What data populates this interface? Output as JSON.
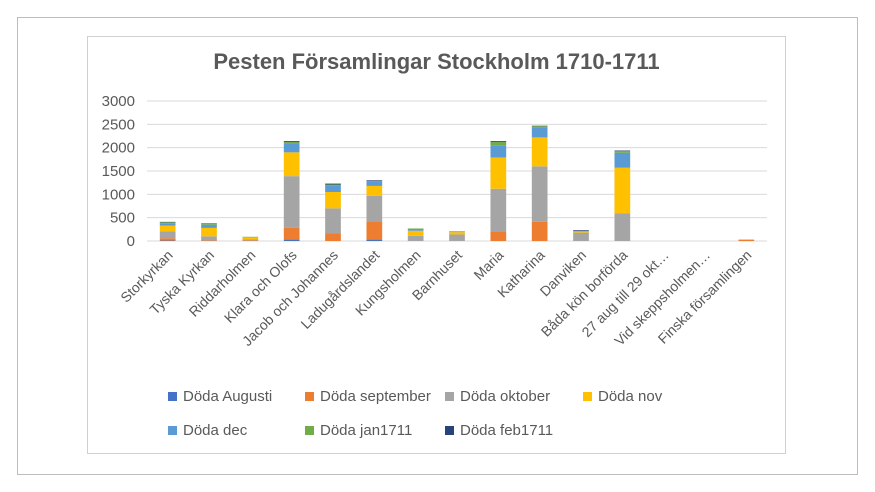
{
  "chart_data": {
    "type": "bar",
    "stacked": true,
    "title": "Pesten Församlingar Stockholm 1710-1711",
    "xlabel": "",
    "ylabel": "",
    "ylim": [
      0,
      3000
    ],
    "yticks": [
      0,
      500,
      1000,
      1500,
      2000,
      2500,
      3000
    ],
    "grid": true,
    "legend_position": "bottom",
    "categories": [
      "Storkyrkan",
      "Tyska Kyrkan",
      "Riddarholmen",
      "Klara och Olofs",
      "Jacob och Johannes",
      "Ladugårdslandet",
      "Kungsholmen",
      "Barnhuset",
      "Maria",
      "Katharina",
      "Danviken",
      "Båda kön borförda",
      "27 aug till 29 okt…",
      "Vid skeppsholmen…",
      "Finska församlingen"
    ],
    "series": [
      {
        "name": "Döda Augusti",
        "color": "#4472C4",
        "values": [
          10,
          0,
          0,
          30,
          0,
          30,
          0,
          0,
          0,
          0,
          0,
          0,
          0,
          0,
          0
        ]
      },
      {
        "name": "Döda september",
        "color": "#ED7D31",
        "values": [
          50,
          10,
          10,
          250,
          160,
          390,
          0,
          0,
          210,
          410,
          0,
          0,
          0,
          0,
          30
        ]
      },
      {
        "name": "Döda oktober",
        "color": "#A5A5A5",
        "values": [
          150,
          90,
          30,
          1110,
          540,
          550,
          110,
          140,
          910,
          1190,
          180,
          590,
          0,
          0,
          0
        ]
      },
      {
        "name": "Döda nov",
        "color": "#FFC000",
        "values": [
          120,
          180,
          30,
          510,
          350,
          210,
          110,
          50,
          670,
          620,
          30,
          980,
          0,
          0,
          0
        ]
      },
      {
        "name": "Döda dec",
        "color": "#5B9BD5",
        "values": [
          50,
          70,
          10,
          180,
          130,
          90,
          40,
          10,
          260,
          210,
          0,
          320,
          0,
          0,
          0
        ]
      },
      {
        "name": "Döda jan1711",
        "color": "#70AD47",
        "values": [
          20,
          20,
          10,
          40,
          30,
          10,
          10,
          10,
          70,
          30,
          0,
          40,
          0,
          0,
          0
        ]
      },
      {
        "name": "Döda feb1711",
        "color": "#264478",
        "values": [
          10,
          10,
          0,
          20,
          20,
          20,
          0,
          0,
          20,
          10,
          20,
          10,
          0,
          0,
          0
        ]
      }
    ]
  }
}
